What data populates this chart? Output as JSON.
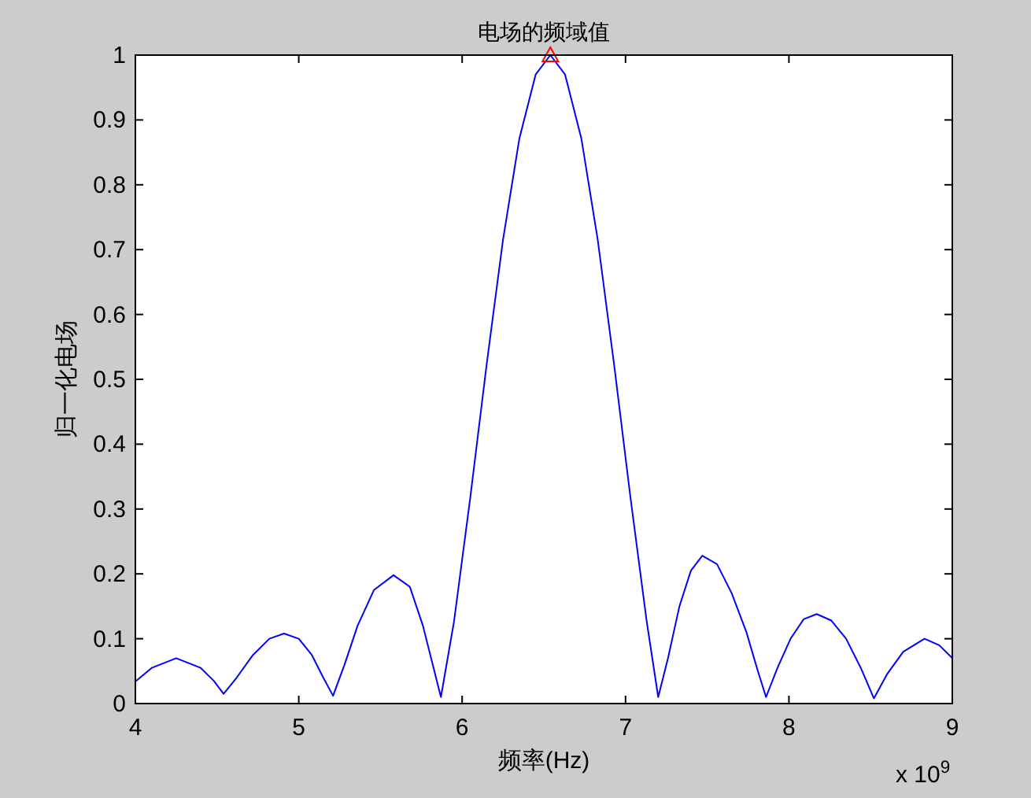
{
  "chart_data": {
    "type": "line",
    "title": "电场的频域值",
    "xlabel": "频率(Hz)",
    "ylabel": "归一化电场",
    "annotations": [
      "x 10$^{9}$"
    ],
    "xlim": [
      4,
      9
    ],
    "xticks": [
      4,
      5,
      6,
      7,
      8,
      9
    ],
    "ylim": [
      0,
      1
    ],
    "yticks": [
      0,
      0.1,
      0.2,
      0.3,
      0.4,
      0.5,
      0.6,
      0.7,
      0.8,
      0.9,
      1
    ],
    "grid": false,
    "series": [
      {
        "color": "#0000ff",
        "line_style": "solid",
        "x": [
          4.0,
          4.1,
          4.25,
          4.4,
          4.48,
          4.54,
          4.62,
          4.72,
          4.82,
          4.91,
          5.0,
          5.08,
          5.15,
          5.21,
          5.28,
          5.36,
          5.46,
          5.58,
          5.68,
          5.76,
          5.82,
          5.87,
          5.95,
          6.05,
          6.15,
          6.25,
          6.35,
          6.45,
          6.54,
          6.63,
          6.73,
          6.83,
          6.93,
          7.03,
          7.13,
          7.2,
          7.26,
          7.33,
          7.4,
          7.47,
          7.56,
          7.65,
          7.74,
          7.81,
          7.86,
          7.93,
          8.01,
          8.09,
          8.17,
          8.26,
          8.35,
          8.44,
          8.52,
          8.6,
          8.7,
          8.83,
          8.92,
          9.0
        ],
        "values": [
          0.034,
          0.055,
          0.07,
          0.055,
          0.035,
          0.015,
          0.04,
          0.075,
          0.1,
          0.108,
          0.1,
          0.075,
          0.04,
          0.012,
          0.06,
          0.12,
          0.175,
          0.198,
          0.18,
          0.12,
          0.06,
          0.01,
          0.126,
          0.318,
          0.523,
          0.715,
          0.871,
          0.97,
          1.0,
          0.97,
          0.871,
          0.715,
          0.523,
          0.318,
          0.126,
          0.01,
          0.07,
          0.15,
          0.205,
          0.228,
          0.215,
          0.17,
          0.11,
          0.05,
          0.01,
          0.055,
          0.1,
          0.13,
          0.138,
          0.128,
          0.1,
          0.055,
          0.008,
          0.045,
          0.08,
          0.1,
          0.09,
          0.07
        ]
      },
      {
        "type": "scatter",
        "color": "#ff0000",
        "marker": "triangle",
        "x": [
          6.54
        ],
        "values": [
          1.0
        ]
      }
    ]
  }
}
